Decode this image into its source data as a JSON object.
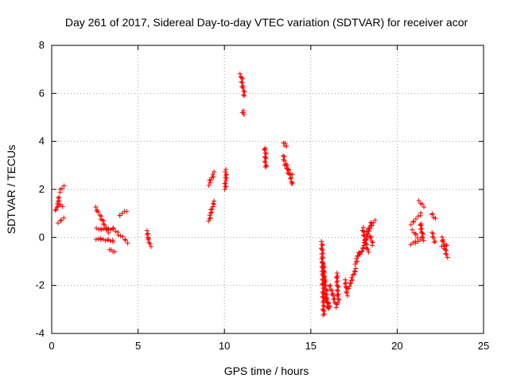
{
  "chart_data": {
    "type": "scatter",
    "title": "Day 261 of 2017, Sidereal Day-to-day VTEC variation (SDTVAR) for receiver acor",
    "xlabel": "GPS time / hours",
    "ylabel": "SDTVAR / TECUs",
    "xlim": [
      0,
      25
    ],
    "ylim": [
      -4,
      8
    ],
    "x_ticks": [
      0,
      5,
      10,
      15,
      20,
      25
    ],
    "y_ticks": [
      -4,
      -2,
      0,
      2,
      4,
      6,
      8
    ],
    "x_tick_labels": [
      "0",
      "5",
      "10",
      "15",
      "20",
      "25"
    ],
    "y_tick_labels": [
      "-4",
      "-2",
      "0",
      "2",
      "4",
      "6",
      "8"
    ],
    "grid": true,
    "marker": "+",
    "color": "#ff0000",
    "series": [
      {
        "name": "SDTVAR",
        "segments": [
          {
            "x0": 0.25,
            "x1": 0.45,
            "y0": 1.1,
            "y1": 1.7
          },
          {
            "x0": 0.4,
            "x1": 0.6,
            "y0": 1.4,
            "y1": 1.3
          },
          {
            "x0": 0.45,
            "x1": 0.7,
            "y0": 1.9,
            "y1": 2.15
          },
          {
            "x0": 0.35,
            "x1": 0.7,
            "y0": 0.6,
            "y1": 0.8
          },
          {
            "x0": 2.55,
            "x1": 3.3,
            "y0": 1.25,
            "y1": 0.2
          },
          {
            "x0": 2.6,
            "x1": 3.5,
            "y0": 0.35,
            "y1": 0.35
          },
          {
            "x0": 2.6,
            "x1": 3.6,
            "y0": -0.05,
            "y1": -0.15
          },
          {
            "x0": 3.4,
            "x1": 3.6,
            "y0": -0.5,
            "y1": -0.6
          },
          {
            "x0": 3.5,
            "x1": 4.4,
            "y0": 0.4,
            "y1": -0.2
          },
          {
            "x0": 3.9,
            "x1": 4.3,
            "y0": 0.9,
            "y1": 1.1
          },
          {
            "x0": 5.5,
            "x1": 5.7,
            "y0": 0.25,
            "y1": -0.35
          },
          {
            "x0": 9.1,
            "x1": 9.4,
            "y0": 2.2,
            "y1": 2.7
          },
          {
            "x0": 9.1,
            "x1": 9.4,
            "y0": 0.7,
            "y1": 1.5
          },
          {
            "x0": 10.05,
            "x1": 10.1,
            "y0": 2.0,
            "y1": 2.8
          },
          {
            "x0": 10.95,
            "x1": 11.15,
            "y0": 6.8,
            "y1": 5.9
          },
          {
            "x0": 11.05,
            "x1": 11.1,
            "y0": 5.25,
            "y1": 5.15
          },
          {
            "x0": 12.35,
            "x1": 12.4,
            "y0": 3.75,
            "y1": 2.9
          },
          {
            "x0": 13.4,
            "x1": 13.6,
            "y0": 3.95,
            "y1": 3.8
          },
          {
            "x0": 13.4,
            "x1": 13.95,
            "y0": 3.4,
            "y1": 2.2
          },
          {
            "x0": 13.5,
            "x1": 13.9,
            "y0": 3.0,
            "y1": 2.6
          },
          {
            "x0": 15.65,
            "x1": 15.75,
            "y0": -0.2,
            "y1": -3.25
          },
          {
            "x0": 15.7,
            "x1": 16.0,
            "y0": -1.0,
            "y1": -3.0
          },
          {
            "x0": 15.75,
            "x1": 16.1,
            "y0": -2.3,
            "y1": -2.9
          },
          {
            "x0": 16.1,
            "x1": 16.5,
            "y0": -2.0,
            "y1": -2.9
          },
          {
            "x0": 16.5,
            "x1": 16.6,
            "y0": -1.5,
            "y1": -2.7
          },
          {
            "x0": 17.0,
            "x1": 17.1,
            "y0": -1.8,
            "y1": -2.4
          },
          {
            "x0": 17.2,
            "x1": 17.6,
            "y0": -2.1,
            "y1": -1.3
          },
          {
            "x0": 17.6,
            "x1": 17.8,
            "y0": -1.1,
            "y1": -0.6
          },
          {
            "x0": 17.9,
            "x1": 18.5,
            "y0": -0.7,
            "y1": 0.6
          },
          {
            "x0": 18.0,
            "x1": 18.3,
            "y0": 0.4,
            "y1": -0.6
          },
          {
            "x0": 18.2,
            "x1": 18.7,
            "y0": 0.2,
            "y1": 0.7
          },
          {
            "x0": 18.4,
            "x1": 18.6,
            "y0": 0.1,
            "y1": -0.3
          },
          {
            "x0": 20.8,
            "x1": 21.4,
            "y0": 0.55,
            "y1": 1.0
          },
          {
            "x0": 20.8,
            "x1": 21.3,
            "y0": -0.3,
            "y1": -0.1
          },
          {
            "x0": 20.9,
            "x1": 21.2,
            "y0": 0.3,
            "y1": 0.0
          },
          {
            "x0": 21.3,
            "x1": 21.5,
            "y0": 1.5,
            "y1": 1.3
          },
          {
            "x0": 21.35,
            "x1": 21.5,
            "y0": 0.6,
            "y1": -0.1
          },
          {
            "x0": 22.0,
            "x1": 22.2,
            "y0": 1.0,
            "y1": 0.8
          },
          {
            "x0": 22.0,
            "x1": 22.2,
            "y0": 0.2,
            "y1": -0.2
          },
          {
            "x0": 22.6,
            "x1": 22.9,
            "y0": 0.0,
            "y1": -0.8
          },
          {
            "x0": 22.6,
            "x1": 22.9,
            "y0": -0.4,
            "y1": -0.3
          }
        ]
      }
    ]
  }
}
